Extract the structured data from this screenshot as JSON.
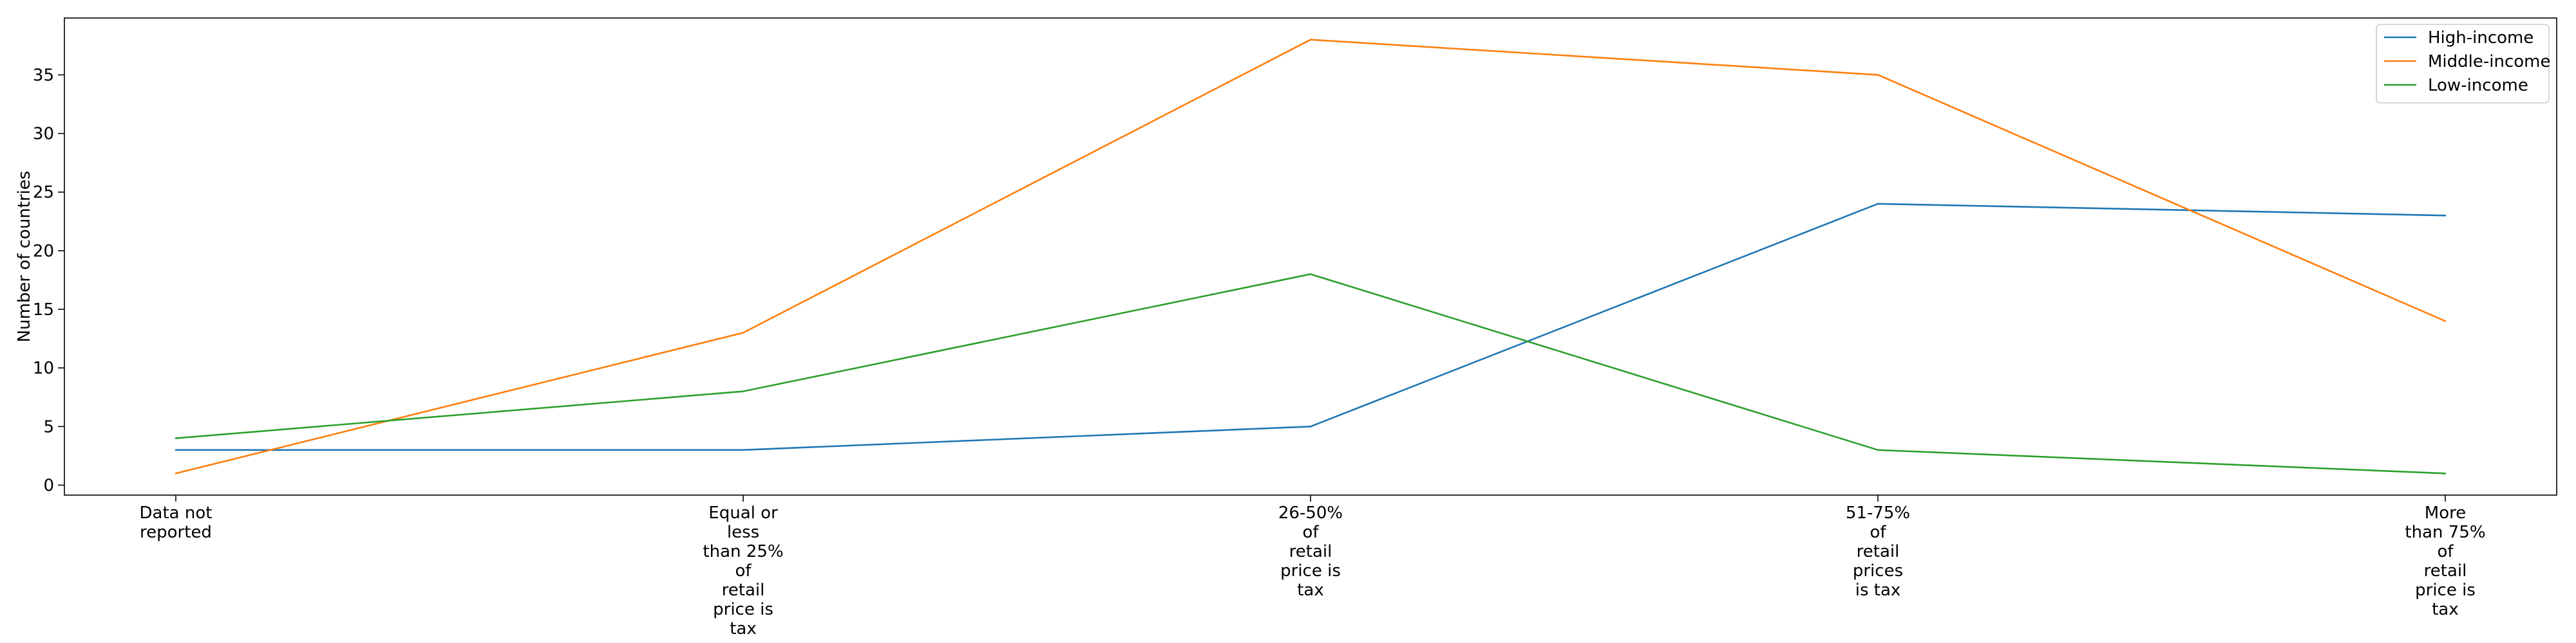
{
  "chart_data": {
    "type": "line",
    "categories": [
      "Data not\nreported",
      "Equal or\nless\nthan 25%\nof\nretail\nprice is\ntax",
      "26-50%\nof\nretail\nprice is\ntax",
      "51-75%\nof\nretail\nprices\nis tax",
      "More\nthan 75%\nof\nretail\nprice is\ntax"
    ],
    "series": [
      {
        "name": "High-income",
        "color": "#1f77b4",
        "values": [
          3,
          3,
          5,
          24,
          23
        ]
      },
      {
        "name": "Middle-income",
        "color": "#ff7f0e",
        "values": [
          1,
          13,
          38,
          35,
          14
        ]
      },
      {
        "name": "Low-income",
        "color": "#2ca02c",
        "values": [
          4,
          8,
          18,
          3,
          1
        ]
      }
    ],
    "title": "",
    "xlabel": "",
    "ylabel": "Number of countries",
    "ylim": [
      -0.85,
      39.85
    ],
    "yticks": [
      0,
      5,
      10,
      15,
      20,
      25,
      30,
      35
    ],
    "grid": false,
    "legend_position": "top-right"
  }
}
